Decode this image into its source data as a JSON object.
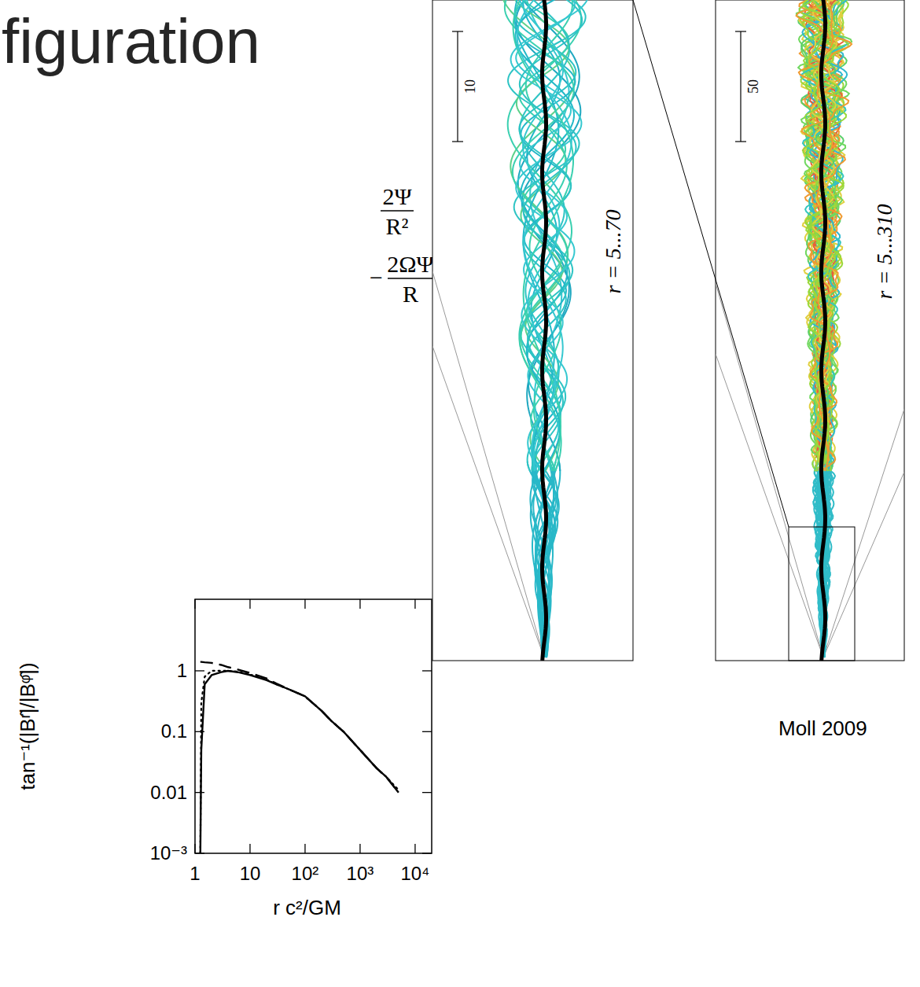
{
  "chart_data": {
    "type": "line",
    "x_label": "r c²/GM",
    "y_label": "tan⁻¹(|Bʳ̂|/|Bᵠ̂|)",
    "log": true,
    "grid": false,
    "xlim": [
      1,
      20000
    ],
    "ylim": [
      0.001,
      15
    ],
    "xticks": [
      1,
      10,
      {
        "value": 100,
        "label": "10²"
      },
      {
        "value": 1000,
        "label": "10³"
      },
      {
        "value": 10000,
        "label": "10⁴"
      }
    ],
    "yticks": [
      {
        "value": 0.001,
        "label": "10⁻³"
      },
      0.01,
      0.1,
      1
    ],
    "x": [
      1.25,
      1.3,
      1.5,
      2,
      3,
      4,
      6,
      10,
      20,
      30,
      50,
      100,
      200,
      300,
      500,
      1000,
      2000,
      3000,
      5000
    ],
    "series": [
      {
        "color": "#000000",
        "line_style": "solid",
        "values": [
          0.001,
          0.05,
          0.6,
          0.85,
          0.95,
          1.0,
          0.95,
          0.85,
          0.7,
          0.6,
          0.5,
          0.38,
          0.22,
          0.15,
          0.1,
          0.05,
          0.025,
          0.018,
          0.01
        ]
      },
      {
        "color": "#000000",
        "line_style": "dashed",
        "values": [
          1.4,
          1.4,
          1.38,
          1.35,
          1.25,
          1.15,
          1.05,
          0.92,
          0.75,
          0.62,
          0.5,
          0.38,
          0.22,
          0.15,
          0.1,
          0.05,
          0.025,
          0.018,
          0.01
        ]
      },
      {
        "color": "#000000",
        "line_style": "dotted",
        "values": [
          0.001,
          0.3,
          0.8,
          1.0,
          1.0,
          1.0,
          0.97,
          0.87,
          0.72,
          0.6,
          0.5,
          0.38,
          0.22,
          0.15,
          0.1,
          0.05,
          0.025,
          0.018,
          0.011
        ]
      }
    ]
  },
  "slide": {
    "title": "figuration",
    "equations": [
      {
        "sign": "",
        "numerator": "2Ψ",
        "denominator": "R²"
      },
      {
        "sign": "−",
        "numerator": "2ΩΨ",
        "denominator": "R"
      }
    ],
    "panels": [
      {
        "scale_label": "10",
        "range_label": "r = 5...70"
      },
      {
        "scale_label": "50",
        "range_label": "r = 5...310"
      }
    ],
    "credit": "Moll 2009"
  }
}
